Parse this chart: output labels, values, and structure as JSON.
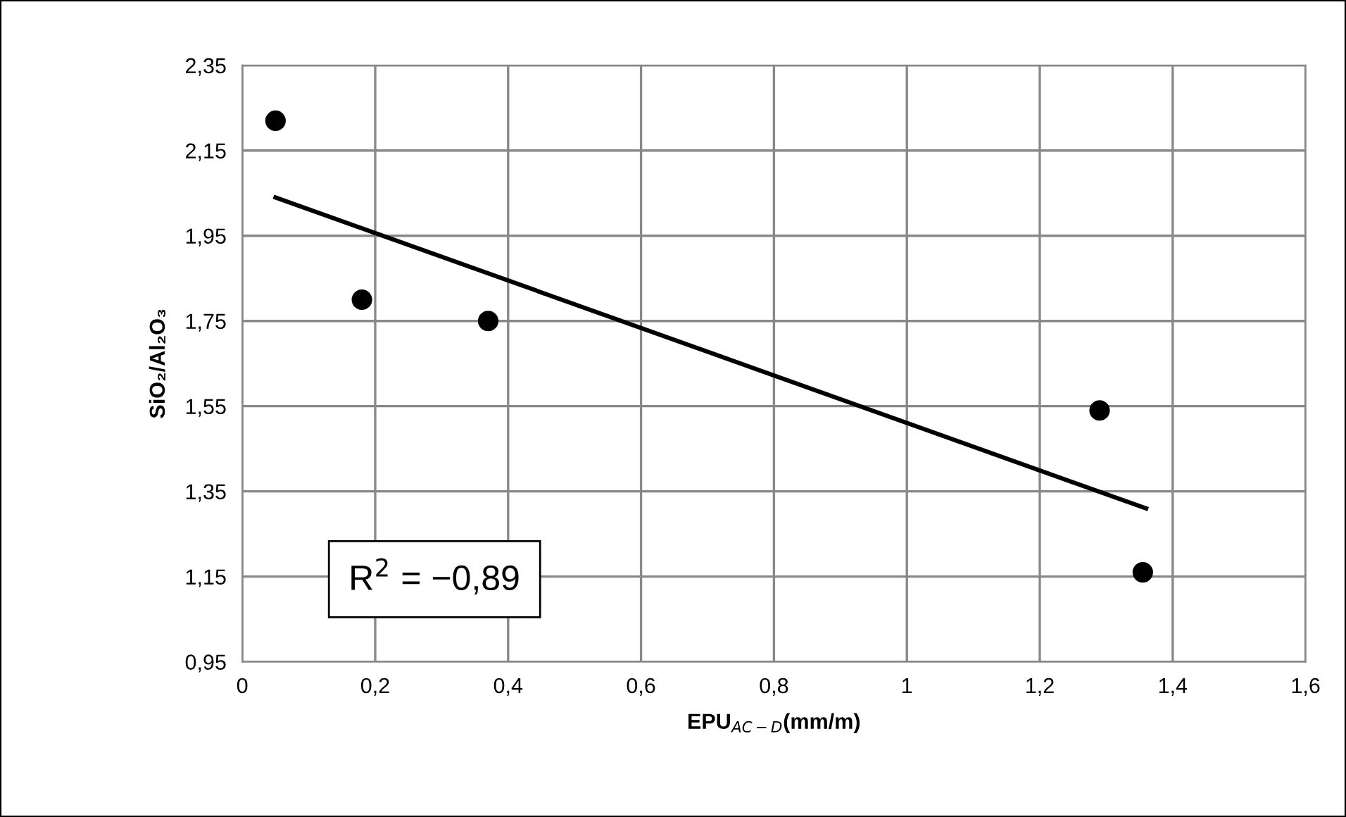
{
  "chart_data": {
    "type": "scatter",
    "xlabel": "EPU$_{AC−D}$(mm/m)",
    "ylabel": "SiO₂/Al₂O₃",
    "xlim": [
      0,
      1.6
    ],
    "ylim": [
      0.95,
      2.35
    ],
    "xticks": [
      0,
      {
        "value": 0.2,
        "label": "0,2"
      },
      {
        "value": 0.4,
        "label": "0,4"
      },
      {
        "value": 0.6,
        "label": "0,6"
      },
      {
        "value": 0.8,
        "label": "0,8"
      },
      1,
      {
        "value": 1.2,
        "label": "1,2"
      },
      {
        "value": 1.4,
        "label": "1,4"
      },
      {
        "value": 1.6,
        "label": "1,6"
      }
    ],
    "yticks": [
      {
        "value": 0.95,
        "label": "0,95"
      },
      {
        "value": 1.15,
        "label": "1,15"
      },
      {
        "value": 1.35,
        "label": "1,35"
      },
      {
        "value": 1.55,
        "label": "1,55"
      },
      {
        "value": 1.75,
        "label": "1,75"
      },
      {
        "value": 1.95,
        "label": "1,95"
      },
      {
        "value": 2.15,
        "label": "2,15"
      },
      {
        "value": 2.35,
        "label": "2,35"
      }
    ],
    "grid": true,
    "series": [
      {
        "marker": "circle",
        "color": "#000000",
        "x": [
          0.05,
          0.18,
          0.37,
          1.29,
          1.355
        ],
        "values": [
          2.22,
          1.8,
          1.75,
          1.54,
          1.16
        ]
      },
      {
        "type": "line",
        "color": "#000000",
        "x": [
          0.05,
          1.36
        ],
        "values": [
          2.04,
          1.31
        ]
      }
    ],
    "annotations": [
      {
        "text": "R$^{2}$ = −0,89"
      }
    ]
  }
}
